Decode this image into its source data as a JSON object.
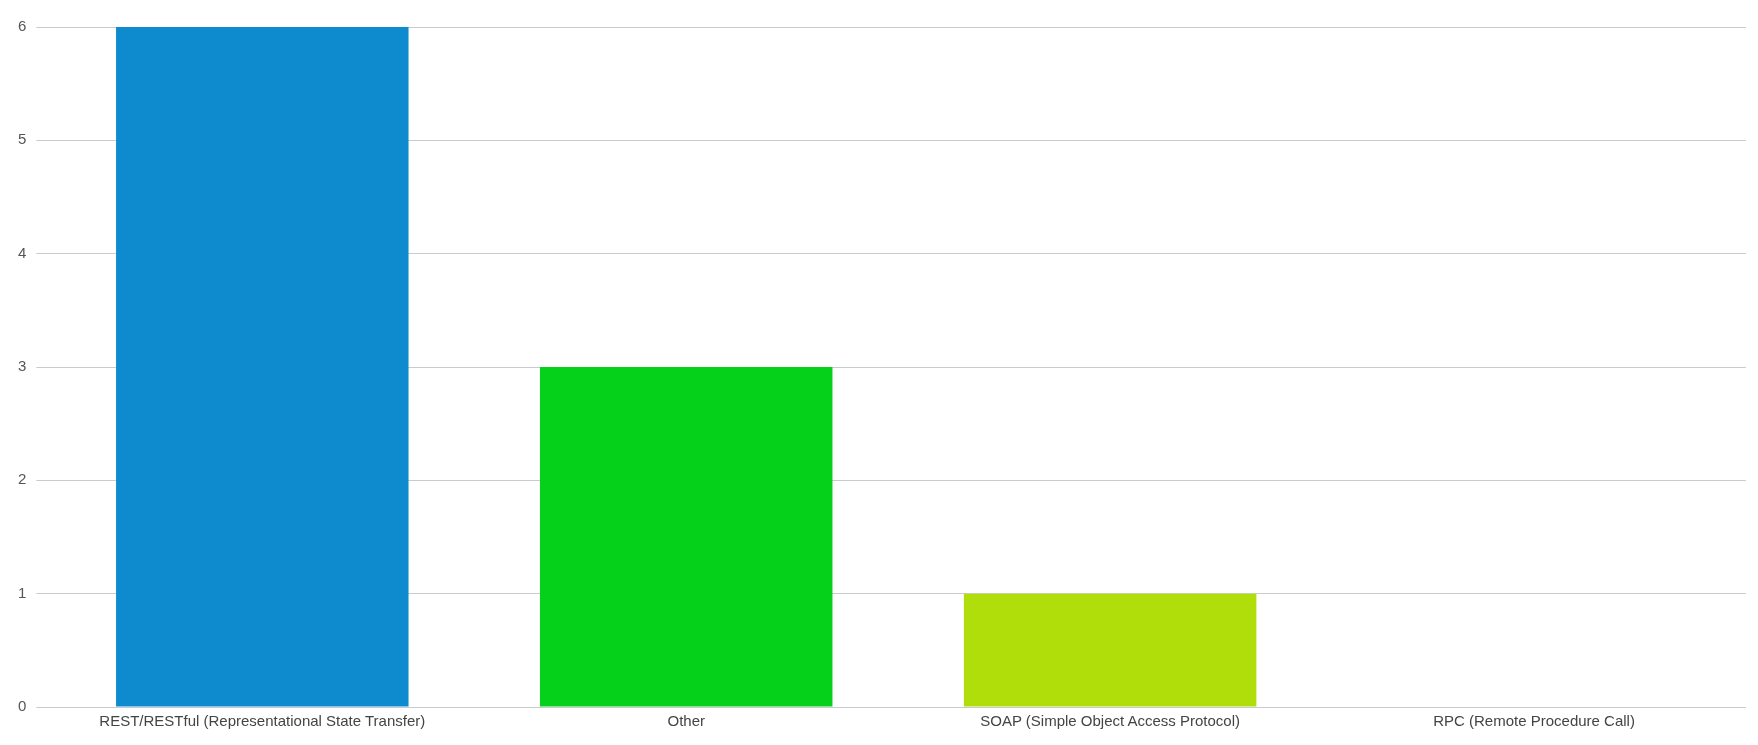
{
  "chart_data": {
    "type": "bar",
    "categories": [
      "REST/RESTful (Representational State Transfer)",
      "Other",
      "SOAP (Simple Object Access Protocol)",
      "RPC (Remote Procedure Call)"
    ],
    "values": [
      6,
      3,
      1,
      0
    ],
    "colors": [
      "#0e8bcf",
      "#05d01a",
      "#b0de0a",
      "#f6a200"
    ],
    "ylim": [
      0,
      6
    ],
    "yticks": [
      0,
      1,
      2,
      3,
      4,
      5,
      6
    ],
    "grid": "y",
    "legend": false
  }
}
